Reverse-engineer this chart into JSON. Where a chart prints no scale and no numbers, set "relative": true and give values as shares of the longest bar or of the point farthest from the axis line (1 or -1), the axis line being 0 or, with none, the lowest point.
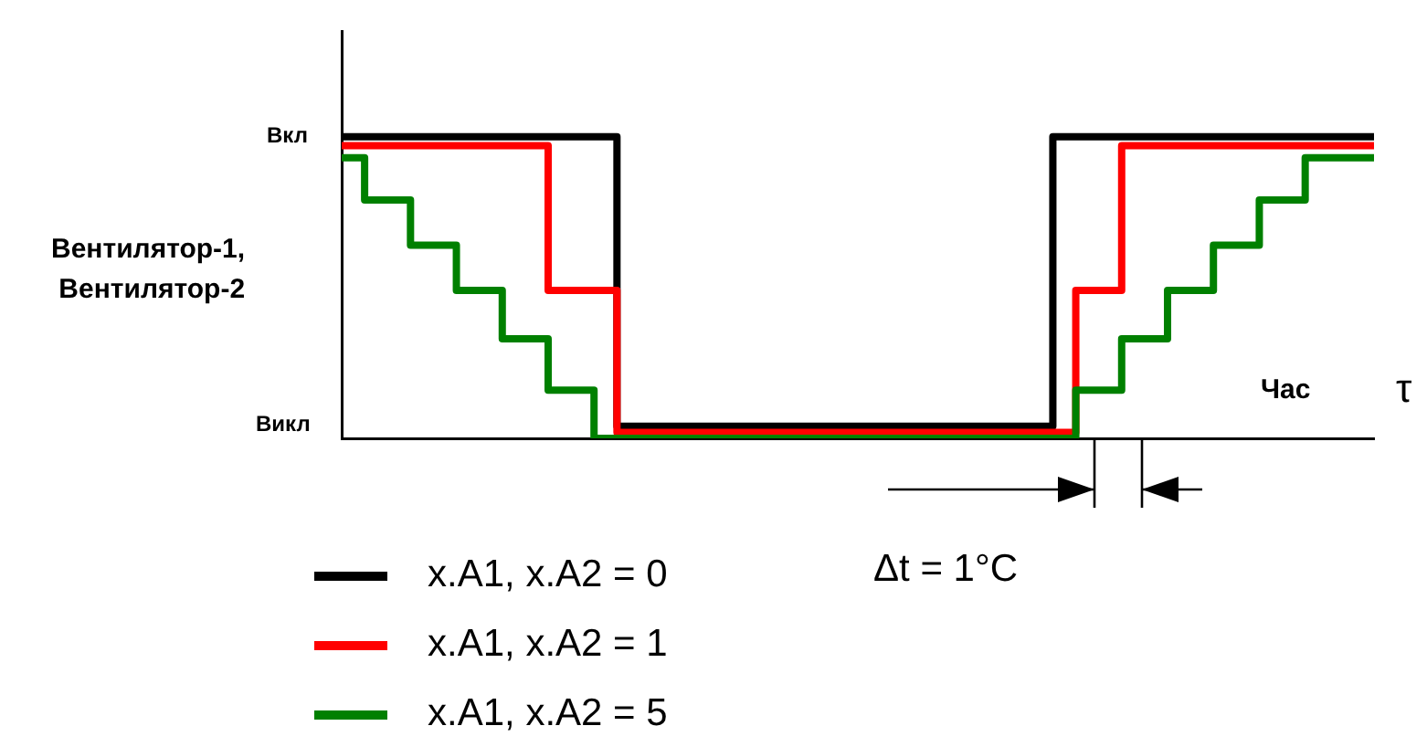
{
  "chart_data": {
    "type": "step",
    "ylabel": "Вентилятор-1,\nВентилятор-2",
    "xlabel": "Час",
    "annotations": [
      "τ",
      "Δt = 1°C",
      "Вкл",
      "Викл"
    ],
    "relative": true,
    "categories": [
      null,
      null,
      null,
      null,
      null,
      null,
      null,
      null,
      null,
      null,
      null,
      null,
      null,
      null,
      null,
      null,
      null,
      null,
      null,
      null,
      null,
      null,
      null,
      null,
      null,
      null,
      null,
      null,
      null,
      null,
      null,
      null,
      null,
      null,
      null,
      null,
      null,
      null,
      null,
      null,
      null,
      null,
      null,
      null,
      null,
      null
    ],
    "legend": "bottom left",
    "line_style": "solid",
    "grid": false,
    "series": [
      {
        "name": "x.A1, x.A2 = 5",
        "color": "#008000",
        "values": [
          0.93,
          0.93,
          0.79,
          0.79,
          0.64,
          0.64,
          0.49,
          0.49,
          0.33,
          0.33,
          0.16,
          0.16,
          0,
          0,
          0,
          0,
          0,
          0,
          0,
          0,
          0,
          0,
          0,
          0,
          0,
          0,
          0,
          0,
          0,
          0,
          0,
          0,
          0,
          0.16,
          0.16,
          0.33,
          0.33,
          0.49,
          0.49,
          0.64,
          0.64,
          0.79,
          0.79,
          0.93,
          0.93,
          0.93
        ]
      },
      {
        "name": "x.A1, x.A2 = 1",
        "color": "#ff0000",
        "values": [
          0.97,
          0.97,
          0.97,
          0.97,
          0.97,
          0.97,
          0.97,
          0.97,
          0.97,
          0.97,
          0.49,
          0.49,
          0.49,
          0.02,
          0.02,
          0.02,
          0.02,
          0.02,
          0.02,
          0.02,
          0.02,
          0.02,
          0.02,
          0.02,
          0.02,
          0.02,
          0.02,
          0.02,
          0.02,
          0.02,
          0.02,
          0.02,
          0.02,
          0.49,
          0.49,
          0.97,
          0.97,
          0.97,
          0.97,
          0.97,
          0.97,
          0.97,
          0.97,
          0.97,
          0.97,
          0.97
        ]
      },
      {
        "name": "x.A1, x.A2 = 0",
        "color": "#000000",
        "values": [
          1,
          1,
          1,
          1,
          1,
          1,
          1,
          1,
          1,
          1,
          1,
          1,
          1,
          0.04,
          0.04,
          0.04,
          0.04,
          0.04,
          0.04,
          0.04,
          0.04,
          0.04,
          0.04,
          0.04,
          0.04,
          0.04,
          0.04,
          0.04,
          0.04,
          0.04,
          0.04,
          0.04,
          1,
          1,
          1,
          1,
          1,
          1,
          1,
          1,
          1,
          1,
          1,
          1,
          1,
          1
        ]
      }
    ]
  }
}
